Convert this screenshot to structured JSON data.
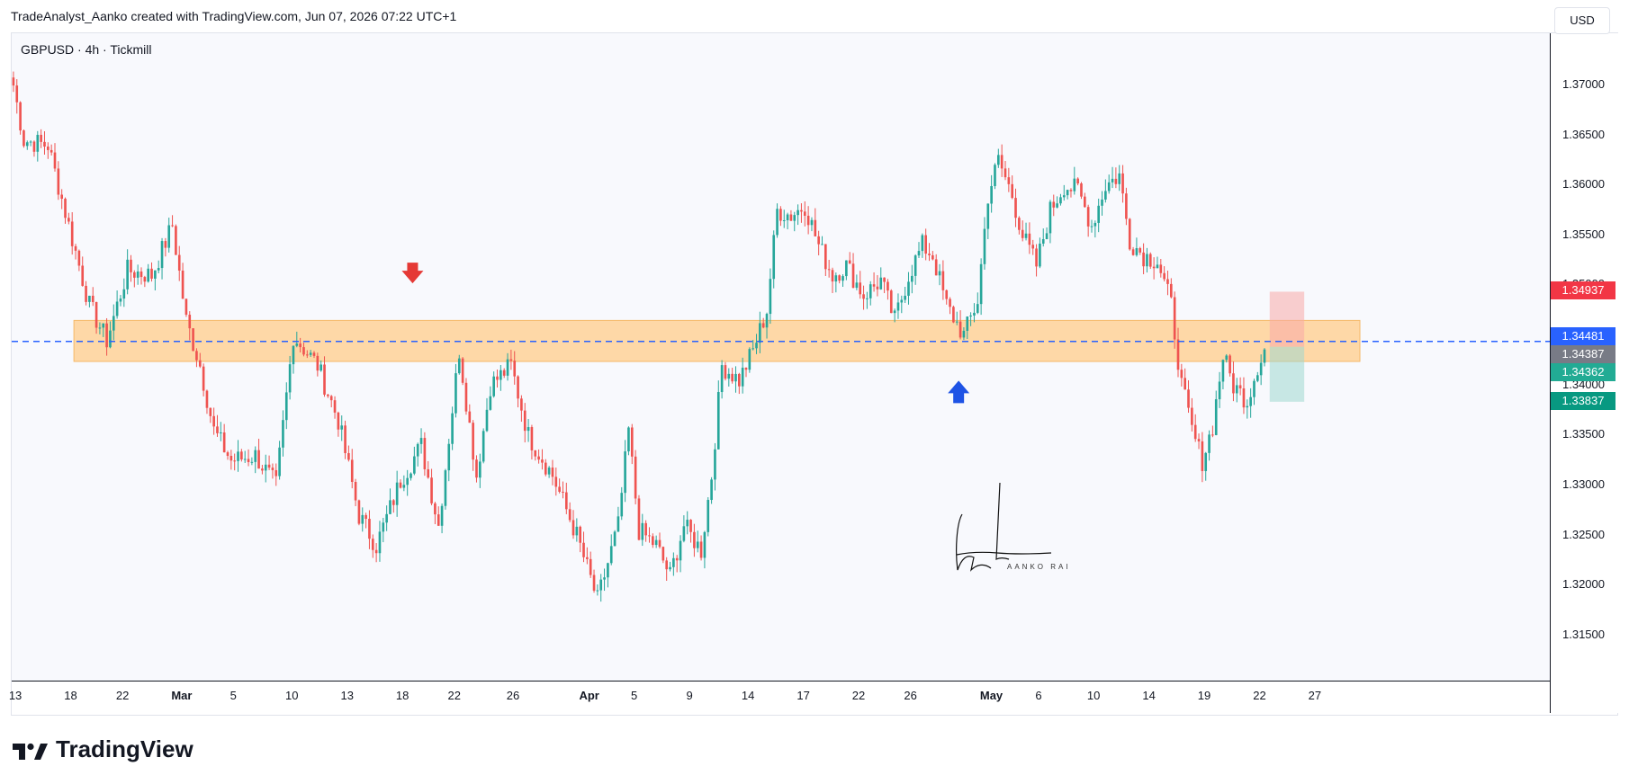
{
  "header": {
    "credit": "TradeAnalyst_Aanko created with TradingView.com, Jun 07, 2026 07:22 UTC+1"
  },
  "chart_header": {
    "symbol": "GBPUSD · 4h · Tickmill",
    "currency": "USD"
  },
  "brand": {
    "name": "TradingView"
  },
  "signature": {
    "text": "AANKO RAI"
  },
  "colors": {
    "up": "#26a69a",
    "down": "#ef5350",
    "zone": "#ffd59e",
    "level_line": "#2962ff",
    "badge_stop": "#f23645",
    "badge_blue": "#2962ff",
    "badge_grey": "#787b86",
    "badge_green": "#22ab94",
    "badge_target": "#089981",
    "arrow_down": "#e53935",
    "arrow_up": "#1e53e5"
  },
  "price_badges": [
    {
      "label": "1.34937",
      "price": 1.34937,
      "color": "#f23645"
    },
    {
      "label": "1.34481",
      "price": 1.34481,
      "color": "#2962ff"
    },
    {
      "label": "1.34387",
      "price": 1.34387,
      "color": "#787b86"
    },
    {
      "label": "1.34362",
      "price": 1.34362,
      "color": "#22ab94"
    },
    {
      "label": "1.33837",
      "price": 1.33837,
      "color": "#089981"
    }
  ],
  "chart_data": {
    "type": "candlestick",
    "symbol": "GBPUSD",
    "timeframe": "4h",
    "ylim": [
      1.3105,
      1.3752
    ],
    "y_ticks": [
      "1.37000",
      "1.36500",
      "1.36000",
      "1.35500",
      "1.35000",
      "1.34500",
      "1.34000",
      "1.33500",
      "1.33000",
      "1.32500",
      "1.32000",
      "1.31500"
    ],
    "x_ticks": [
      {
        "label": "13",
        "bar": 1,
        "bold": false
      },
      {
        "label": "18",
        "bar": 17,
        "bold": false
      },
      {
        "label": "22",
        "bar": 32,
        "bold": false
      },
      {
        "label": "Mar",
        "bar": 48,
        "bold": true
      },
      {
        "label": "5",
        "bar": 65,
        "bold": false
      },
      {
        "label": "10",
        "bar": 81,
        "bold": false
      },
      {
        "label": "13",
        "bar": 97,
        "bold": false
      },
      {
        "label": "18",
        "bar": 113,
        "bold": false
      },
      {
        "label": "22",
        "bar": 128,
        "bold": false
      },
      {
        "label": "26",
        "bar": 145,
        "bold": false
      },
      {
        "label": "Apr",
        "bar": 166,
        "bold": true
      },
      {
        "label": "5",
        "bar": 181,
        "bold": false
      },
      {
        "label": "9",
        "bar": 197,
        "bold": false
      },
      {
        "label": "14",
        "bar": 213,
        "bold": false
      },
      {
        "label": "17",
        "bar": 229,
        "bold": false
      },
      {
        "label": "22",
        "bar": 245,
        "bold": false
      },
      {
        "label": "26",
        "bar": 260,
        "bold": false
      },
      {
        "label": "May",
        "bar": 282,
        "bold": true
      },
      {
        "label": "6",
        "bar": 298,
        "bold": false
      },
      {
        "label": "10",
        "bar": 313,
        "bold": false
      },
      {
        "label": "14",
        "bar": 329,
        "bold": false
      },
      {
        "label": "19",
        "bar": 345,
        "bold": false
      },
      {
        "label": "22",
        "bar": 361,
        "bold": false
      },
      {
        "label": "27",
        "bar": 377,
        "bold": false
      }
    ],
    "bar_count": 400,
    "close_anchors": [
      [
        0,
        1.37
      ],
      [
        3,
        1.3645
      ],
      [
        10,
        1.364
      ],
      [
        16,
        1.356
      ],
      [
        22,
        1.348
      ],
      [
        27,
        1.3445
      ],
      [
        33,
        1.3515
      ],
      [
        40,
        1.351
      ],
      [
        46,
        1.356
      ],
      [
        50,
        1.3465
      ],
      [
        54,
        1.342
      ],
      [
        58,
        1.3355
      ],
      [
        63,
        1.3325
      ],
      [
        70,
        1.333
      ],
      [
        76,
        1.33
      ],
      [
        81,
        1.345
      ],
      [
        88,
        1.342
      ],
      [
        94,
        1.3365
      ],
      [
        100,
        1.327
      ],
      [
        105,
        1.324
      ],
      [
        112,
        1.3305
      ],
      [
        118,
        1.334
      ],
      [
        123,
        1.326
      ],
      [
        129,
        1.3435
      ],
      [
        134,
        1.331
      ],
      [
        138,
        1.34
      ],
      [
        144,
        1.342
      ],
      [
        149,
        1.335
      ],
      [
        156,
        1.331
      ],
      [
        163,
        1.325
      ],
      [
        169,
        1.3185
      ],
      [
        175,
        1.326
      ],
      [
        178,
        1.3355
      ],
      [
        181,
        1.3255
      ],
      [
        186,
        1.324
      ],
      [
        190,
        1.321
      ],
      [
        194,
        1.326
      ],
      [
        199,
        1.3235
      ],
      [
        202,
        1.331
      ],
      [
        205,
        1.342
      ],
      [
        210,
        1.3405
      ],
      [
        214,
        1.3435
      ],
      [
        218,
        1.3475
      ],
      [
        221,
        1.3575
      ],
      [
        225,
        1.357
      ],
      [
        229,
        1.358
      ],
      [
        233,
        1.354
      ],
      [
        237,
        1.351
      ],
      [
        241,
        1.352
      ],
      [
        246,
        1.349
      ],
      [
        251,
        1.3505
      ],
      [
        255,
        1.3465
      ],
      [
        259,
        1.351
      ],
      [
        263,
        1.354
      ],
      [
        266,
        1.353
      ],
      [
        270,
        1.348
      ],
      [
        275,
        1.345
      ],
      [
        279,
        1.3485
      ],
      [
        282,
        1.359
      ],
      [
        285,
        1.3625
      ],
      [
        289,
        1.359
      ],
      [
        292,
        1.355
      ],
      [
        296,
        1.352
      ],
      [
        300,
        1.3575
      ],
      [
        304,
        1.36
      ],
      [
        308,
        1.3595
      ],
      [
        312,
        1.356
      ],
      [
        316,
        1.36
      ],
      [
        320,
        1.361
      ],
      [
        323,
        1.3545
      ],
      [
        327,
        1.353
      ],
      [
        331,
        1.3525
      ],
      [
        335,
        1.348
      ],
      [
        338,
        1.34
      ],
      [
        341,
        1.3355
      ],
      [
        344,
        1.3325
      ],
      [
        347,
        1.336
      ],
      [
        350,
        1.343
      ],
      [
        353,
        1.34
      ],
      [
        357,
        1.3385
      ],
      [
        360,
        1.342
      ],
      [
        362,
        1.3436
      ]
    ],
    "volatility_seed": 7,
    "zones": [
      {
        "type": "support_resistance",
        "from_bar": 18,
        "to_bar": 400,
        "y_low": 1.3424,
        "y_high": 1.3465
      }
    ],
    "horizontal_lines": [
      {
        "y": 1.3444,
        "style": "dashed"
      }
    ],
    "arrows": [
      {
        "direction": "down",
        "bar": 116,
        "y": 1.3512
      },
      {
        "direction": "up",
        "bar": 274,
        "y": 1.3394
      }
    ],
    "position_tool": {
      "from_bar": 364,
      "to_bar": 374,
      "entry": 1.34387,
      "stop": 1.34937,
      "target": 1.33837
    }
  }
}
